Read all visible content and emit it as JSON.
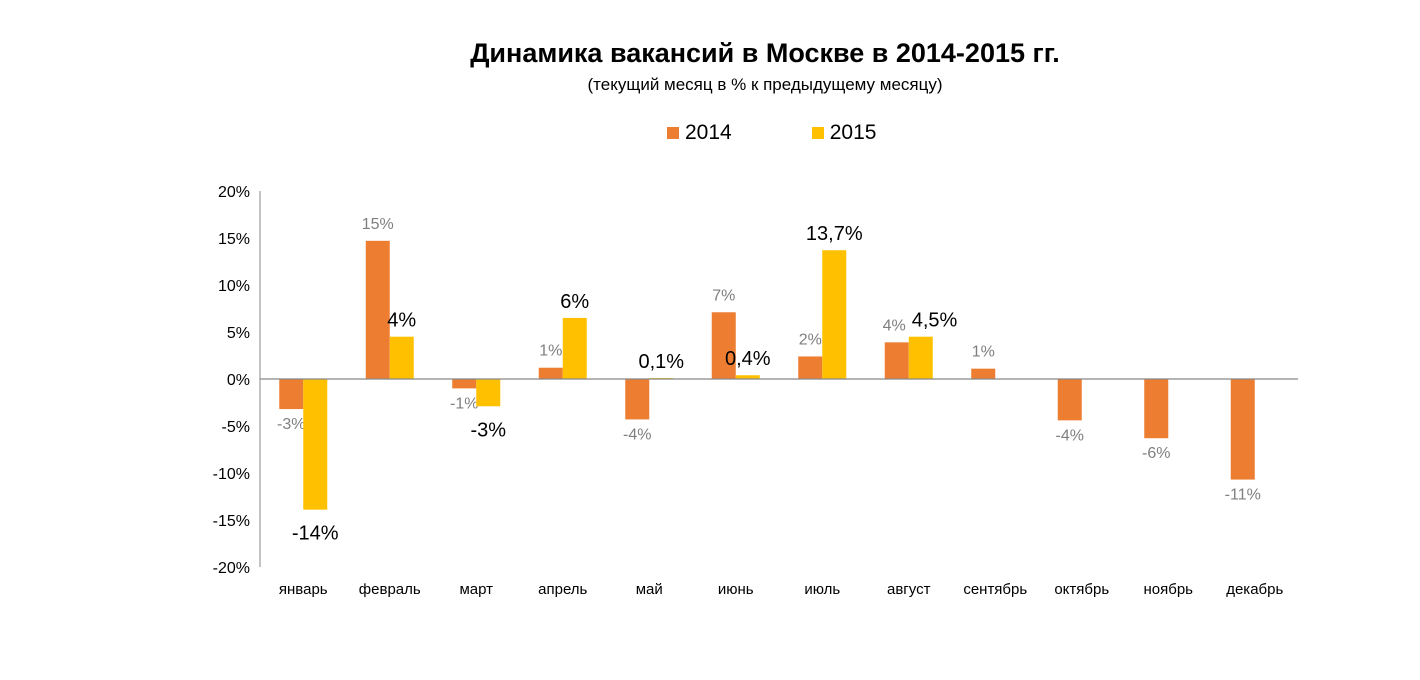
{
  "chart_data": {
    "type": "bar",
    "title": "Динамика вакансий в Москве в 2014-2015 гг.",
    "subtitle": "(текущий месяц в % к предыдущему месяцу)",
    "categories": [
      "январь",
      "февраль",
      "март",
      "апрель",
      "май",
      "июнь",
      "июль",
      "август",
      "сентябрь",
      "октябрь",
      "ноябрь",
      "декабрь"
    ],
    "series": [
      {
        "name": "2014",
        "color": "#ED7D31",
        "values": [
          -3.2,
          14.7,
          -1.0,
          1.2,
          -4.3,
          7.1,
          2.4,
          3.9,
          1.1,
          -4.4,
          -6.3,
          -10.7
        ],
        "labels": [
          "-3%",
          "15%",
          "-1%",
          "1%",
          "-4%",
          "7%",
          "2%",
          "4%",
          "1%",
          "-4%",
          "-6%",
          "-11%"
        ]
      },
      {
        "name": "2015",
        "color": "#FFC000",
        "values": [
          -13.9,
          4.5,
          -2.9,
          6.5,
          0.1,
          0.4,
          13.7,
          4.5,
          null,
          null,
          null,
          null
        ],
        "labels": [
          "-14%",
          "4%",
          "-3%",
          "6%",
          "0,1%",
          "0,4%",
          "13,7%",
          "4,5%",
          "",
          "",
          "",
          ""
        ]
      }
    ],
    "ylim": [
      -20,
      20
    ],
    "yticks": [
      "-20%",
      "-15%",
      "-10%",
      "-5%",
      "0%",
      "5%",
      "10%",
      "15%",
      "20%"
    ],
    "ytick_values": [
      -20,
      -15,
      -10,
      -5,
      0,
      5,
      10,
      15,
      20
    ],
    "grid": false,
    "legend": "top"
  }
}
